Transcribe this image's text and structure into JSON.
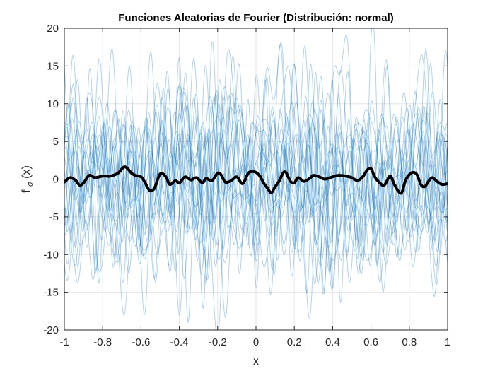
{
  "chart_data": {
    "type": "line",
    "title": "Funciones Aleatorias de Fourier (Distribución: normal)",
    "xlabel": "x",
    "ylabel_main": "f",
    "ylabel_sub": "σ",
    "ylabel_arg": "(x)",
    "xlim": [
      -1,
      1
    ],
    "ylim": [
      -20,
      20
    ],
    "xticks": [
      -1,
      -0.8,
      -0.6,
      -0.4,
      -0.2,
      0,
      0.2,
      0.4,
      0.6,
      0.8,
      1
    ],
    "xtick_labels": [
      "-1",
      "-0.8",
      "-0.6",
      "-0.4",
      "-0.2",
      "0",
      "0.2",
      "0.4",
      "0.6",
      "0.8",
      "1"
    ],
    "yticks": [
      -20,
      -15,
      -10,
      -5,
      0,
      5,
      10,
      15,
      20
    ],
    "ytick_labels": [
      "-20",
      "-15",
      "-10",
      "-5",
      "0",
      "5",
      "10",
      "15",
      "20"
    ],
    "grid": true,
    "background_series_color": "#0072BD",
    "background_series_opacity": 0.3,
    "background_series_count": 20,
    "background_series_amplitude": 4.5,
    "mean_series_color": "#000000",
    "mean_series": {
      "x": [
        -1,
        -0.97,
        -0.94,
        -0.92,
        -0.9,
        -0.87,
        -0.84,
        -0.8,
        -0.76,
        -0.72,
        -0.69,
        -0.67,
        -0.65,
        -0.63,
        -0.6,
        -0.58,
        -0.555,
        -0.53,
        -0.5,
        -0.47,
        -0.45,
        -0.42,
        -0.4,
        -0.37,
        -0.34,
        -0.31,
        -0.28,
        -0.26,
        -0.23,
        -0.2,
        -0.18,
        -0.16,
        -0.13,
        -0.1,
        -0.07,
        -0.04,
        -0.02,
        0,
        0.02,
        0.04,
        0.06,
        0.08,
        0.1,
        0.12,
        0.15,
        0.18,
        0.2,
        0.22,
        0.25,
        0.28,
        0.3,
        0.33,
        0.36,
        0.4,
        0.43,
        0.47,
        0.5,
        0.53,
        0.56,
        0.58,
        0.6,
        0.62,
        0.65,
        0.67,
        0.7,
        0.72,
        0.74,
        0.76,
        0.78,
        0.8,
        0.82,
        0.84,
        0.86,
        0.88,
        0.9,
        0.92,
        0.94,
        0.97,
        1
      ],
      "y": [
        -0.4,
        0.2,
        -0.2,
        -0.8,
        -0.5,
        0.5,
        0.2,
        0.4,
        0.4,
        0.8,
        1.6,
        1.4,
        0.8,
        0.5,
        0.3,
        -0.4,
        -1.5,
        -1.2,
        0.7,
        0.3,
        -0.7,
        -0.2,
        -0.5,
        0.3,
        -0.1,
        0.2,
        -0.5,
        0.1,
        -0.2,
        0.8,
        0.5,
        -0.4,
        -0.2,
        0.3,
        -0.6,
        0.8,
        1.0,
        0.9,
        0.4,
        -0.5,
        -1.2,
        -1.8,
        -1.0,
        -0.3,
        1.0,
        -0.3,
        -0.5,
        0.2,
        -0.3,
        0.1,
        0.5,
        0.3,
        0.0,
        0.3,
        0.5,
        0.4,
        0.2,
        -0.2,
        0.4,
        1.2,
        1.4,
        0.3,
        -0.6,
        -0.8,
        0.4,
        -0.6,
        -1.5,
        -1.8,
        -0.2,
        0.6,
        0.9,
        0.6,
        -0.7,
        -1.0,
        -0.3,
        0.2,
        -0.2,
        -0.7,
        -0.6
      ]
    }
  }
}
